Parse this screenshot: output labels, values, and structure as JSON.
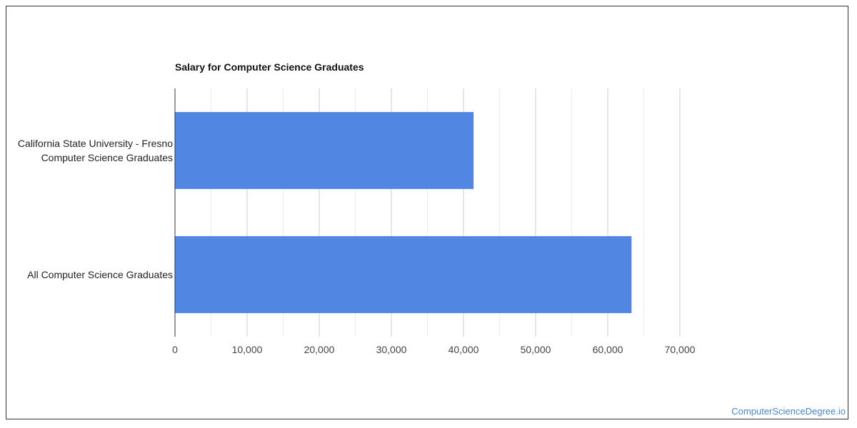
{
  "chart_data": {
    "type": "bar",
    "orientation": "horizontal",
    "title": "Salary for Computer Science Graduates",
    "categories": [
      [
        "California State University - Fresno",
        "Computer Science Graduates"
      ],
      [
        "All Computer Science Graduates"
      ]
    ],
    "values": [
      41400,
      63300
    ],
    "xlim": [
      0,
      70000
    ],
    "x_ticks": [
      0,
      10000,
      20000,
      30000,
      40000,
      50000,
      60000,
      70000
    ],
    "x_tick_labels": [
      "0",
      "10,000",
      "20,000",
      "30,000",
      "40,000",
      "50,000",
      "60,000",
      "70,000"
    ],
    "xlabel": "",
    "ylabel": "",
    "grid": true,
    "legend": "none",
    "bar_color": "#5286e3"
  },
  "watermark": "ComputerScienceDegree.io"
}
